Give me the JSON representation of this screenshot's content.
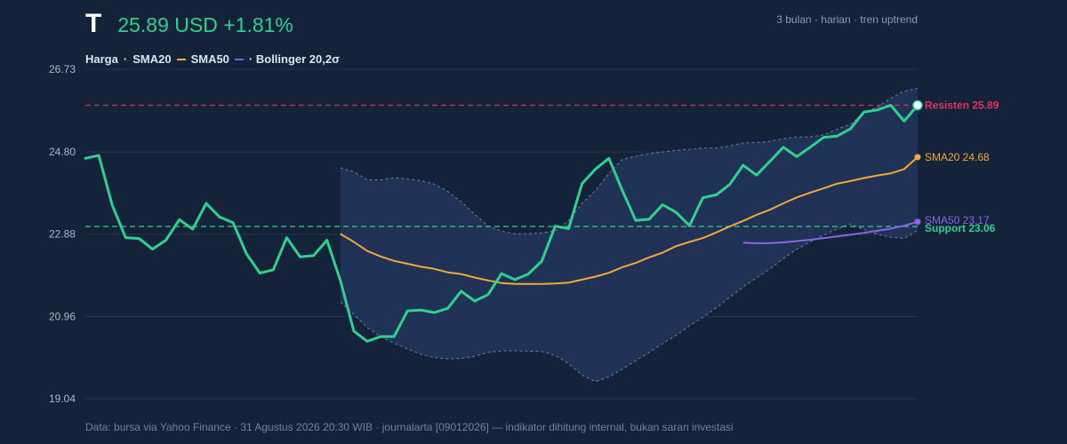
{
  "header": {
    "ticker": "T",
    "price_line": "25.89 USD +1.81%",
    "period": "3 bulan · harian · tren uptrend"
  },
  "legend": {
    "price": "Harga",
    "sep1": "·",
    "sma20": "SMA20",
    "sma50": "SMA50",
    "bollinger": "· Bollinger 20,2σ"
  },
  "footer": "Data: bursa via Yahoo Finance · 31 Agustus 2026 20:30 WIB · journalarta [09012026] — indikator dihitung internal, bukan saran investasi",
  "chart_data": {
    "type": "line",
    "ylim": [
      19.04,
      26.73
    ],
    "yticks": [
      "26.73",
      "24.80",
      "22.88",
      "20.96",
      "19.04"
    ],
    "grid": true,
    "colors": {
      "price": "#2ed18e",
      "sma20": "#f0a93b",
      "sma50": "#8a63e8",
      "band": "#8fa3c4",
      "resistance": "#e0345f",
      "support": "#2ed18e"
    },
    "price": [
      24.65,
      24.72,
      23.56,
      22.8,
      22.78,
      22.53,
      22.74,
      23.22,
      23.0,
      23.6,
      23.28,
      23.15,
      22.42,
      21.97,
      22.05,
      22.8,
      22.35,
      22.38,
      22.74,
      21.8,
      20.62,
      20.38,
      20.49,
      20.49,
      21.09,
      21.11,
      21.05,
      21.15,
      21.55,
      21.32,
      21.47,
      21.96,
      21.82,
      21.95,
      22.25,
      23.07,
      23.01,
      24.06,
      24.4,
      24.65,
      23.9,
      23.2,
      23.23,
      23.57,
      23.39,
      23.08,
      23.73,
      23.8,
      24.04,
      24.49,
      24.26,
      24.58,
      24.91,
      24.69,
      24.91,
      25.14,
      25.17,
      25.34,
      25.73,
      25.78,
      25.89,
      25.52,
      25.89
    ],
    "sma20": [
      null,
      null,
      null,
      null,
      null,
      null,
      null,
      null,
      null,
      null,
      null,
      null,
      null,
      null,
      null,
      null,
      null,
      null,
      null,
      22.89,
      22.7,
      22.49,
      22.36,
      22.26,
      22.19,
      22.12,
      22.07,
      21.99,
      21.95,
      21.87,
      21.8,
      21.74,
      21.72,
      21.72,
      21.72,
      21.73,
      21.75,
      21.82,
      21.89,
      21.98,
      22.11,
      22.21,
      22.34,
      22.45,
      22.6,
      22.7,
      22.79,
      22.92,
      23.06,
      23.19,
      23.33,
      23.45,
      23.6,
      23.74,
      23.85,
      23.95,
      24.06,
      24.12,
      24.19,
      24.25,
      24.3,
      24.4,
      24.68
    ],
    "sma50": [
      null,
      null,
      null,
      null,
      null,
      null,
      null,
      null,
      null,
      null,
      null,
      null,
      null,
      null,
      null,
      null,
      null,
      null,
      null,
      null,
      null,
      null,
      null,
      null,
      null,
      null,
      null,
      null,
      null,
      null,
      null,
      null,
      null,
      null,
      null,
      null,
      null,
      null,
      null,
      null,
      null,
      null,
      null,
      null,
      null,
      null,
      null,
      null,
      null,
      22.68,
      22.67,
      22.67,
      22.69,
      22.72,
      22.75,
      22.79,
      22.83,
      22.87,
      22.91,
      22.96,
      23.01,
      23.08,
      23.17
    ],
    "bb_upper": [
      null,
      null,
      null,
      null,
      null,
      null,
      null,
      null,
      null,
      null,
      null,
      null,
      null,
      null,
      null,
      null,
      null,
      null,
      null,
      24.43,
      24.34,
      24.15,
      24.15,
      24.2,
      24.17,
      24.13,
      24.05,
      23.88,
      23.64,
      23.35,
      23.07,
      22.95,
      22.89,
      22.89,
      22.91,
      22.96,
      23.2,
      23.6,
      23.9,
      24.3,
      24.63,
      24.7,
      24.76,
      24.8,
      24.84,
      24.86,
      24.89,
      24.89,
      24.94,
      25.01,
      25.02,
      25.05,
      25.11,
      25.15,
      25.15,
      25.2,
      25.33,
      25.45,
      25.71,
      25.85,
      26.05,
      26.22,
      26.29
    ],
    "bb_lower": [
      null,
      null,
      null,
      null,
      null,
      null,
      null,
      null,
      null,
      null,
      null,
      null,
      null,
      null,
      null,
      null,
      null,
      null,
      null,
      21.3,
      21.01,
      20.7,
      20.48,
      20.34,
      20.2,
      20.08,
      20.0,
      19.97,
      19.98,
      20.03,
      20.12,
      20.16,
      20.16,
      20.15,
      20.14,
      20.05,
      19.86,
      19.59,
      19.44,
      19.55,
      19.73,
      19.93,
      20.12,
      20.33,
      20.52,
      20.74,
      20.94,
      21.16,
      21.41,
      21.65,
      21.86,
      22.07,
      22.31,
      22.53,
      22.7,
      22.86,
      23.0,
      23.12,
      22.99,
      22.88,
      22.81,
      22.78,
      22.97
    ],
    "levels": [
      {
        "name": "resistance",
        "value": 25.89,
        "label": "Resisten 25.89"
      },
      {
        "name": "support",
        "value": 23.06,
        "label": "Support 23.06"
      }
    ],
    "end_labels": {
      "sma20": "SMA20 24.68",
      "sma50": "SMA50 23.17"
    }
  }
}
